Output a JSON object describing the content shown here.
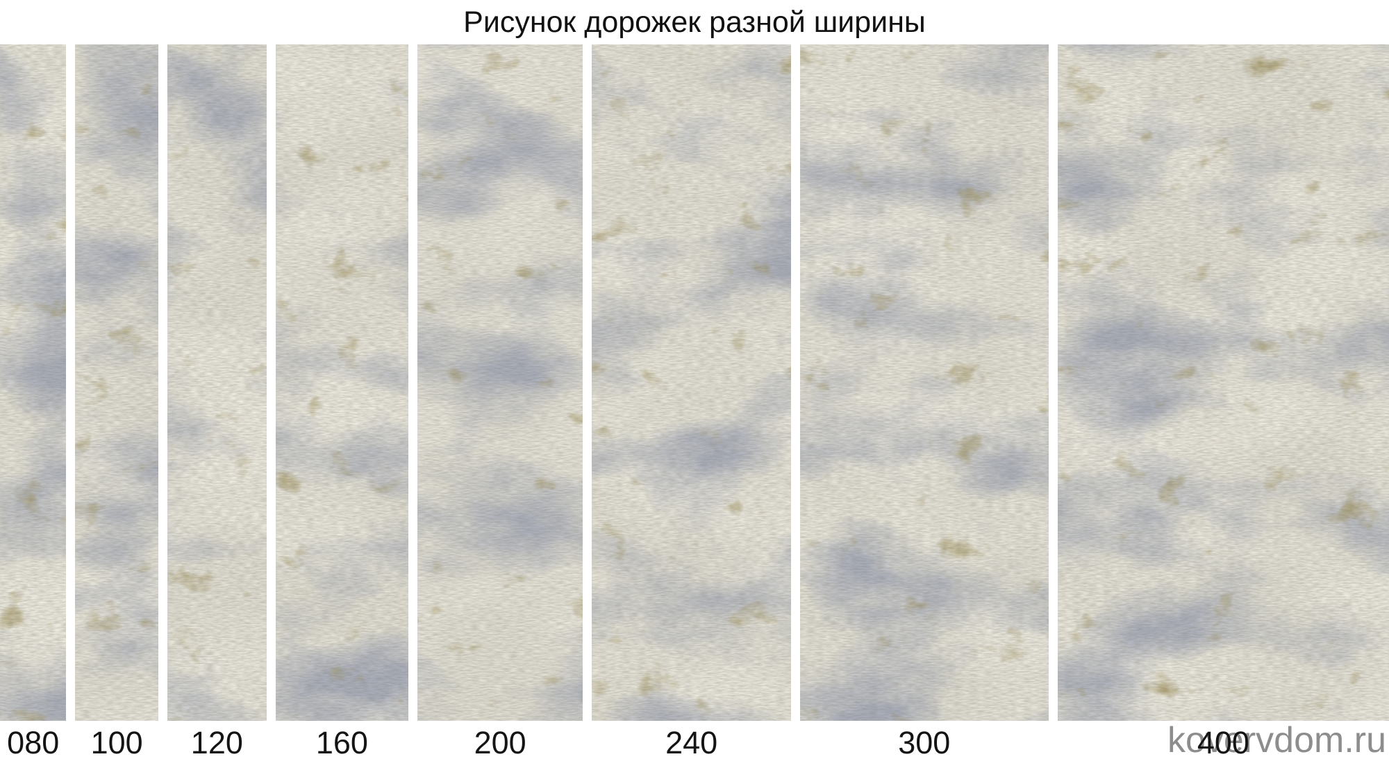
{
  "title": "Рисунок дорожек разной ширины",
  "watermark": "kovervdom.ru",
  "strips": [
    {
      "label": "080",
      "width_cm": 80
    },
    {
      "label": "100",
      "width_cm": 100
    },
    {
      "label": "120",
      "width_cm": 120
    },
    {
      "label": "160",
      "width_cm": 160
    },
    {
      "label": "200",
      "width_cm": 200
    },
    {
      "label": "240",
      "width_cm": 240
    },
    {
      "label": "300",
      "width_cm": 300
    },
    {
      "label": "400",
      "width_cm": 400
    }
  ],
  "texture_colors": {
    "base": "#e9e6da",
    "ivory": "#f4f1e6",
    "gray_blue": "#aeb3c0",
    "olive": "#a2945a",
    "grain": "#6f6d64"
  }
}
